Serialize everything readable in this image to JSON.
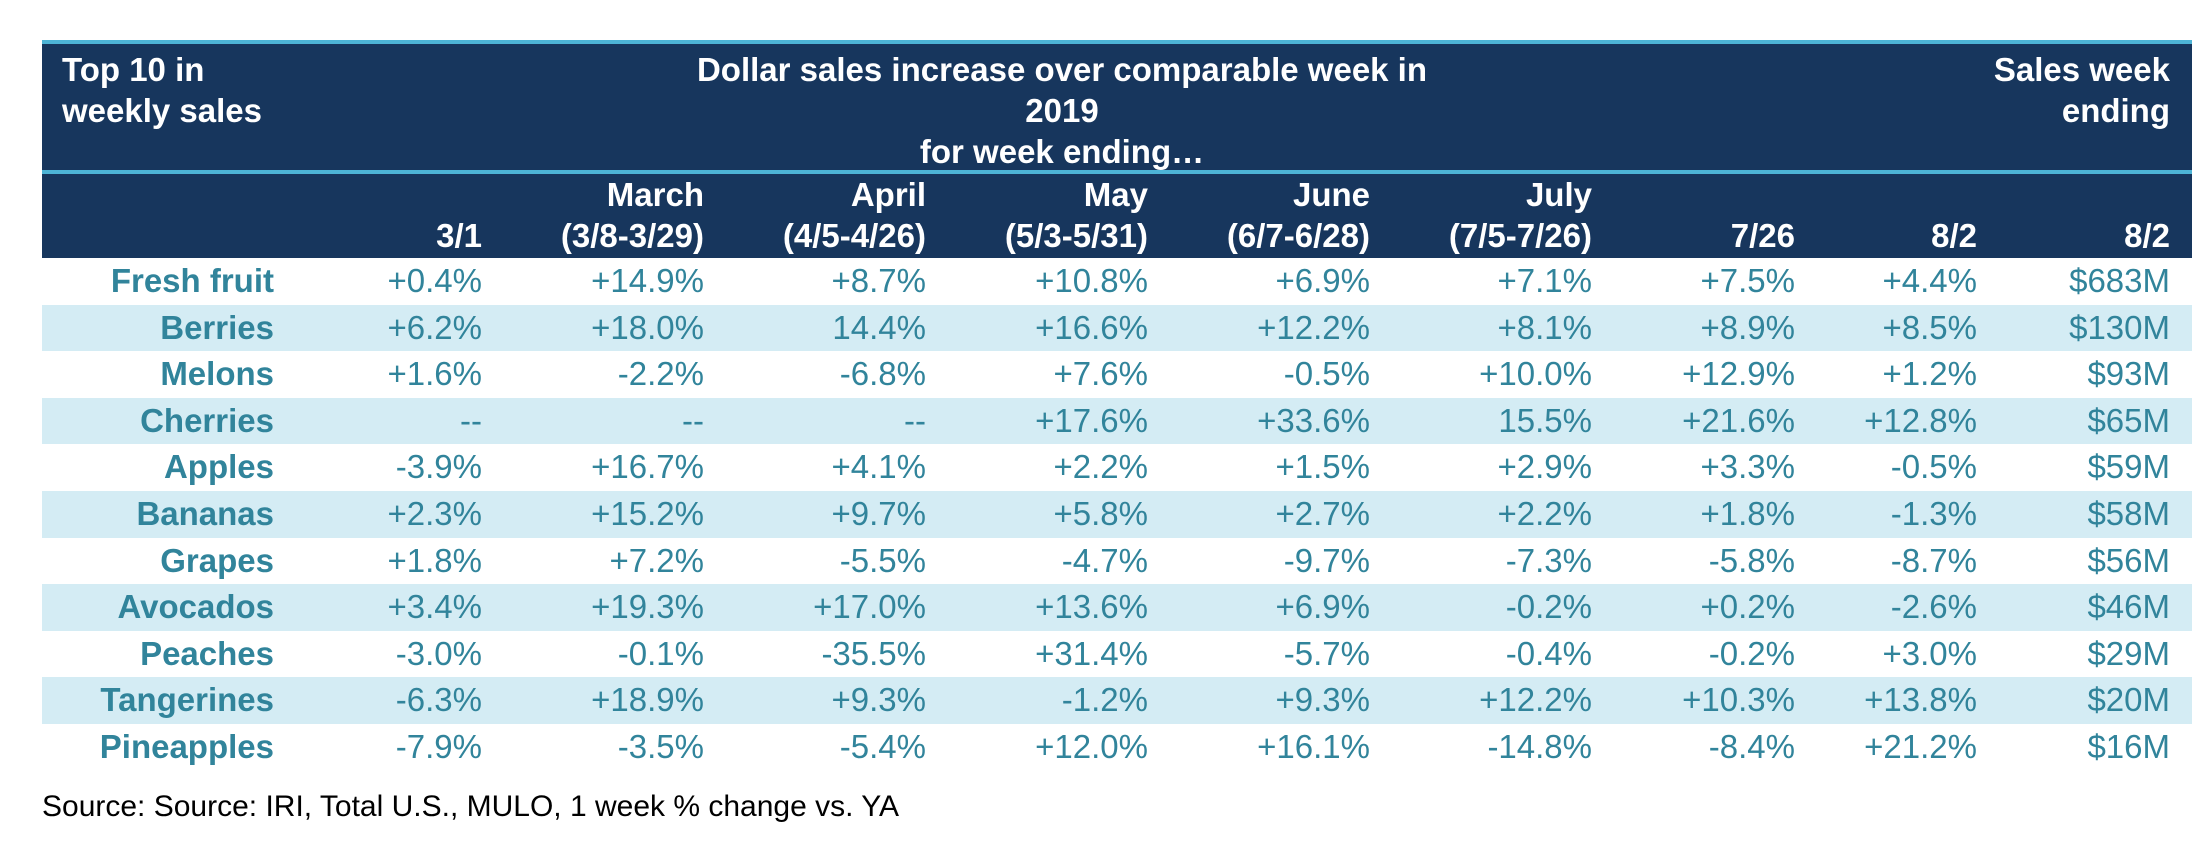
{
  "header": {
    "left": "Top 10 in weekly sales",
    "center_line1": "Dollar sales increase over comparable week in 2019",
    "center_line2": "for week ending…",
    "right": "Sales week ending"
  },
  "chart_data": {
    "type": "table",
    "columns": [
      {
        "line1": "",
        "line2": "3/1"
      },
      {
        "line1": "March",
        "line2": "(3/8-3/29)"
      },
      {
        "line1": "April",
        "line2": "(4/5-4/26)"
      },
      {
        "line1": "May",
        "line2": "(5/3-5/31)"
      },
      {
        "line1": "June",
        "line2": "(6/7-6/28)"
      },
      {
        "line1": "July",
        "line2": "(7/5-7/26)"
      },
      {
        "line1": "",
        "line2": "7/26"
      },
      {
        "line1": "",
        "line2": "8/2"
      },
      {
        "line1": "",
        "line2": "8/2"
      }
    ],
    "rows": [
      {
        "label": "Fresh fruit",
        "values": [
          "+0.4%",
          "+14.9%",
          "+8.7%",
          "+10.8%",
          "+6.9%",
          "+7.1%",
          "+7.5%",
          "+4.4%",
          "$683M"
        ]
      },
      {
        "label": "Berries",
        "values": [
          "+6.2%",
          "+18.0%",
          "14.4%",
          "+16.6%",
          "+12.2%",
          "+8.1%",
          "+8.9%",
          "+8.5%",
          "$130M"
        ]
      },
      {
        "label": "Melons",
        "values": [
          "+1.6%",
          "-2.2%",
          "-6.8%",
          "+7.6%",
          "-0.5%",
          "+10.0%",
          "+12.9%",
          "+1.2%",
          "$93M"
        ]
      },
      {
        "label": "Cherries",
        "values": [
          "--",
          "--",
          "--",
          "+17.6%",
          "+33.6%",
          "15.5%",
          "+21.6%",
          "+12.8%",
          "$65M"
        ]
      },
      {
        "label": "Apples",
        "values": [
          "-3.9%",
          "+16.7%",
          "+4.1%",
          "+2.2%",
          "+1.5%",
          "+2.9%",
          "+3.3%",
          "-0.5%",
          "$59M"
        ]
      },
      {
        "label": "Bananas",
        "values": [
          "+2.3%",
          "+15.2%",
          "+9.7%",
          "+5.8%",
          "+2.7%",
          "+2.2%",
          "+1.8%",
          "-1.3%",
          "$58M"
        ]
      },
      {
        "label": "Grapes",
        "values": [
          "+1.8%",
          "+7.2%",
          "-5.5%",
          "-4.7%",
          "-9.7%",
          "-7.3%",
          "-5.8%",
          "-8.7%",
          "$56M"
        ]
      },
      {
        "label": "Avocados",
        "values": [
          "+3.4%",
          "+19.3%",
          "+17.0%",
          "+13.6%",
          "+6.9%",
          "-0.2%",
          "+0.2%",
          "-2.6%",
          "$46M"
        ]
      },
      {
        "label": "Peaches",
        "values": [
          "-3.0%",
          "-0.1%",
          "-35.5%",
          "+31.4%",
          "-5.7%",
          "-0.4%",
          "-0.2%",
          "+3.0%",
          "$29M"
        ]
      },
      {
        "label": "Tangerines",
        "values": [
          "-6.3%",
          "+18.9%",
          "+9.3%",
          "-1.2%",
          "+9.3%",
          "+12.2%",
          "+10.3%",
          "+13.8%",
          "$20M"
        ]
      },
      {
        "label": "Pineapples",
        "values": [
          "-7.9%",
          "-3.5%",
          "-5.4%",
          "+12.0%",
          "+16.1%",
          "-14.8%",
          "-8.4%",
          "+21.2%",
          "$16M"
        ]
      }
    ]
  },
  "footer": {
    "source": "Source: Source: IRI, Total U.S., MULO, 1 week % change vs. YA"
  },
  "colors": {
    "header_bg": "#17365d",
    "header_text": "#ffffff",
    "accent_line": "#4db4d6",
    "body_text": "#31849b",
    "alt_row_bg": "#d4ecf4"
  }
}
